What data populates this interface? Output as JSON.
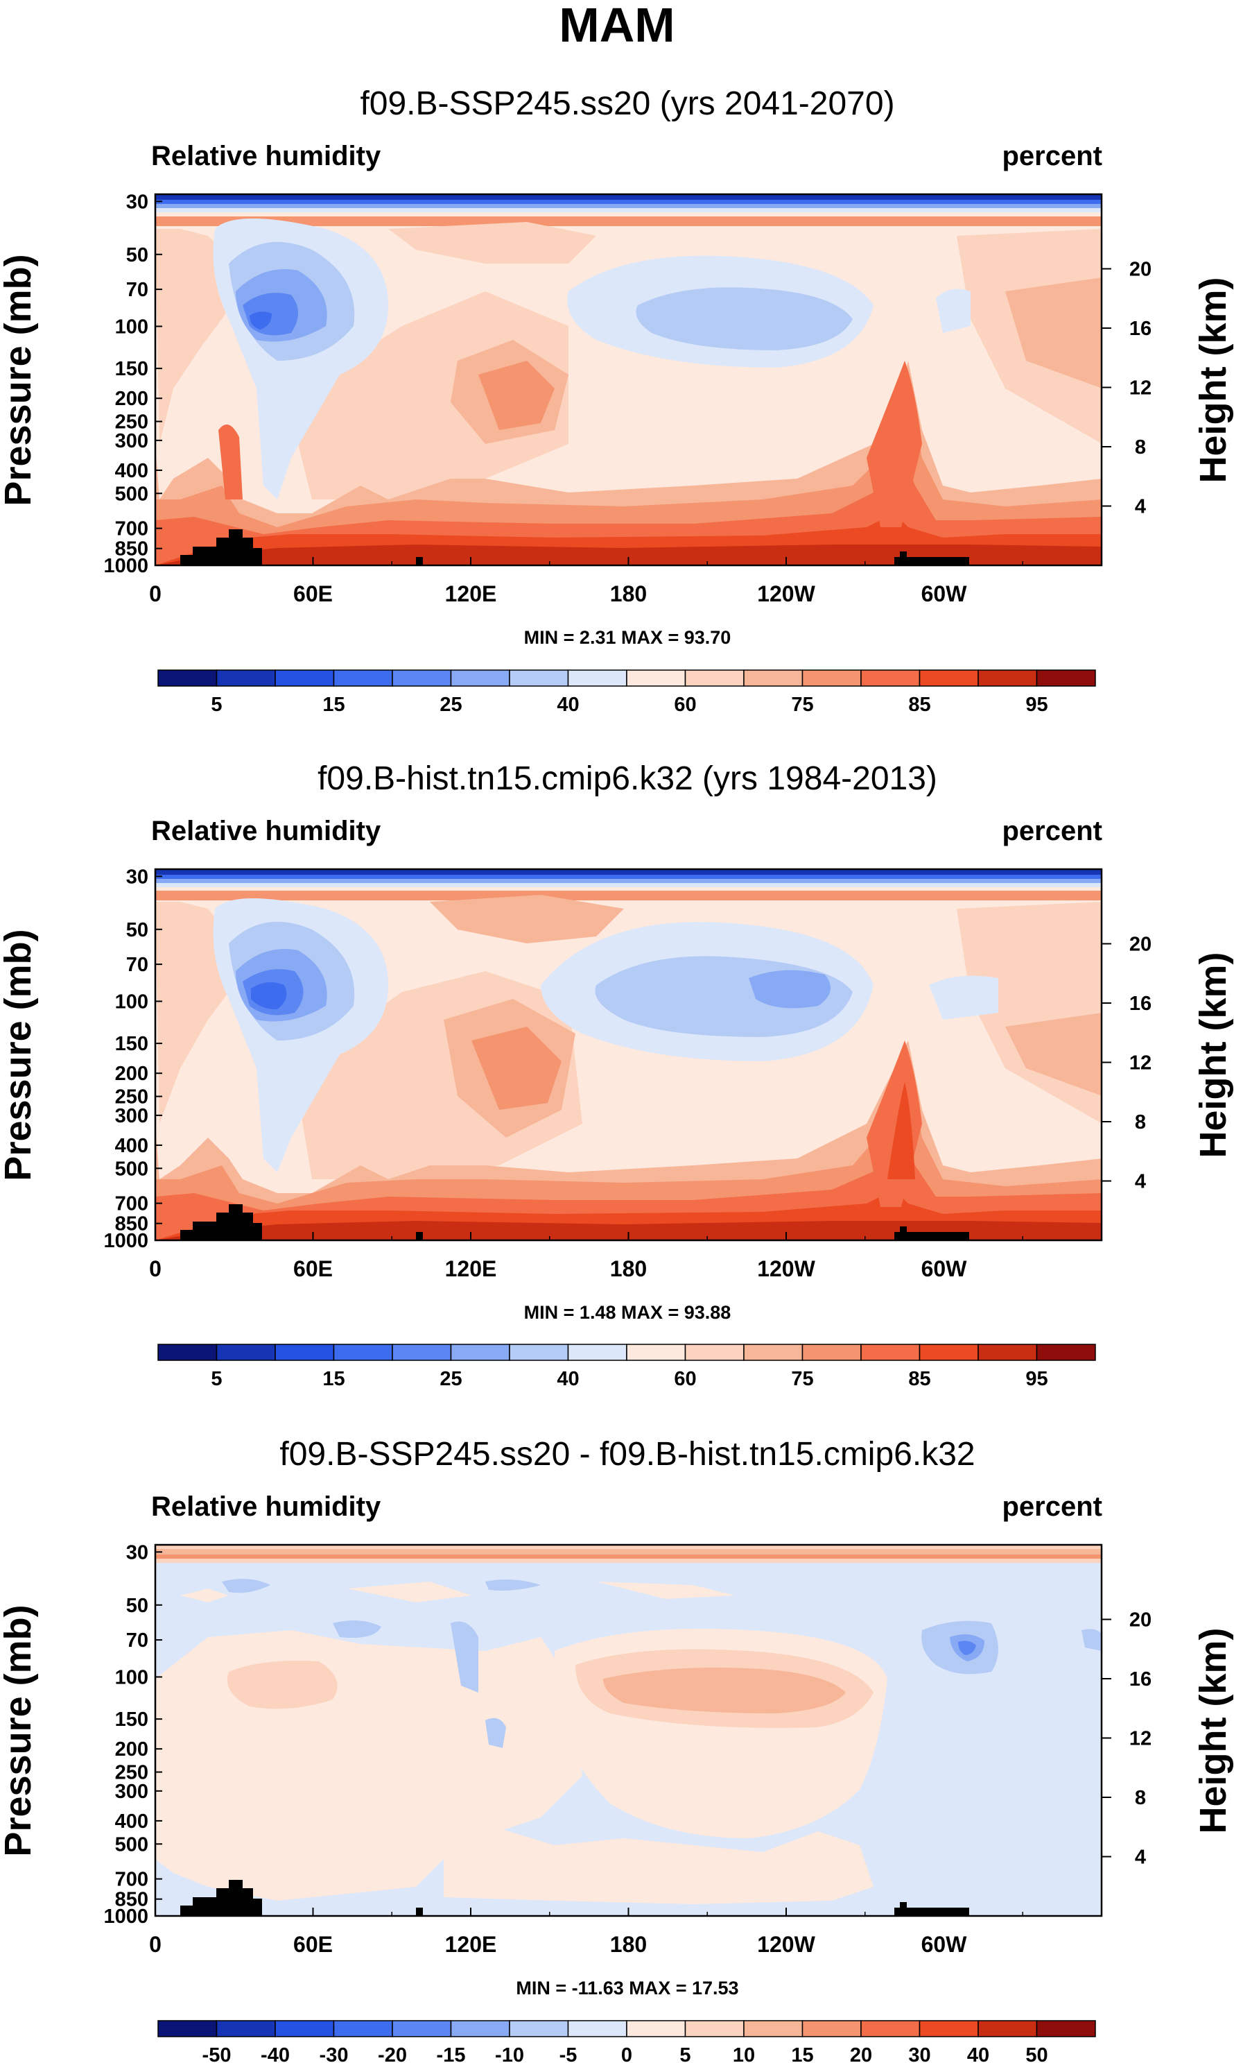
{
  "main_title": "MAM",
  "colors": {
    "rh_scale": [
      "#0a1577",
      "#1535b4",
      "#2452e2",
      "#3d6cef",
      "#5c86f2",
      "#88a9f3",
      "#b4cbf6",
      "#dde7fa",
      "#fde9de",
      "#fcd3bf",
      "#f8b699",
      "#f59570",
      "#f26d48",
      "#eb4a22",
      "#c92d12",
      "#8e0d0b"
    ],
    "diff_scale": [
      "#0a1577",
      "#1535b4",
      "#2452e2",
      "#3d6cef",
      "#5c86f2",
      "#88a9f3",
      "#b4cbf6",
      "#dde7fa",
      "#fde9de",
      "#fcd3bf",
      "#f8b699",
      "#f59570",
      "#f26d48",
      "#eb4a22",
      "#c92d12",
      "#8e0d0b"
    ],
    "land": "#000000"
  },
  "chart_data": [
    {
      "type": "heatmap",
      "title": "f09.B-SSP245.ss20 (yrs 2041-2070)",
      "left_label": "Relative humidity",
      "right_label": "percent",
      "ylabel": "Pressure (mb)",
      "y2label": "Height (km)",
      "y_ticks": [
        "30",
        "50",
        "70",
        "100",
        "150",
        "200",
        "250",
        "300",
        "400",
        "500",
        "700",
        "850",
        "1000"
      ],
      "y2_ticks": [
        "20",
        "16",
        "12",
        "8",
        "4"
      ],
      "x_ticks": [
        "0",
        "60E",
        "120E",
        "180",
        "120W",
        "60W"
      ],
      "min_max": "MIN =  2.31  MAX = 93.70",
      "colorbar_labels": [
        "5",
        "15",
        "25",
        "40",
        "60",
        "75",
        "85",
        "95"
      ],
      "min": 2.31,
      "max": 93.7
    },
    {
      "type": "heatmap",
      "title": "f09.B-hist.tn15.cmip6.k32 (yrs 1984-2013)",
      "left_label": "Relative humidity",
      "right_label": "percent",
      "ylabel": "Pressure (mb)",
      "y2label": "Height (km)",
      "y_ticks": [
        "30",
        "50",
        "70",
        "100",
        "150",
        "200",
        "250",
        "300",
        "400",
        "500",
        "700",
        "850",
        "1000"
      ],
      "y2_ticks": [
        "20",
        "16",
        "12",
        "8",
        "4"
      ],
      "x_ticks": [
        "0",
        "60E",
        "120E",
        "180",
        "120W",
        "60W"
      ],
      "min_max": "MIN =  1.48  MAX = 93.88",
      "colorbar_labels": [
        "5",
        "15",
        "25",
        "40",
        "60",
        "75",
        "85",
        "95"
      ],
      "min": 1.48,
      "max": 93.88
    },
    {
      "type": "heatmap",
      "title": "f09.B-SSP245.ss20 - f09.B-hist.tn15.cmip6.k32",
      "left_label": "Relative humidity",
      "right_label": "percent",
      "ylabel": "Pressure (mb)",
      "y2label": "Height (km)",
      "y_ticks": [
        "30",
        "50",
        "70",
        "100",
        "150",
        "200",
        "250",
        "300",
        "400",
        "500",
        "700",
        "850",
        "1000"
      ],
      "y2_ticks": [
        "20",
        "16",
        "12",
        "8",
        "4"
      ],
      "x_ticks": [
        "0",
        "60E",
        "120E",
        "180",
        "120W",
        "60W"
      ],
      "min_max": "MIN = -11.63  MAX = 17.53",
      "colorbar_labels": [
        "-50",
        "-40",
        "-30",
        "-20",
        "-15",
        "-10",
        "-5",
        "0",
        "5",
        "10",
        "15",
        "20",
        "30",
        "40",
        "50"
      ],
      "min": -11.63,
      "max": 17.53
    }
  ]
}
